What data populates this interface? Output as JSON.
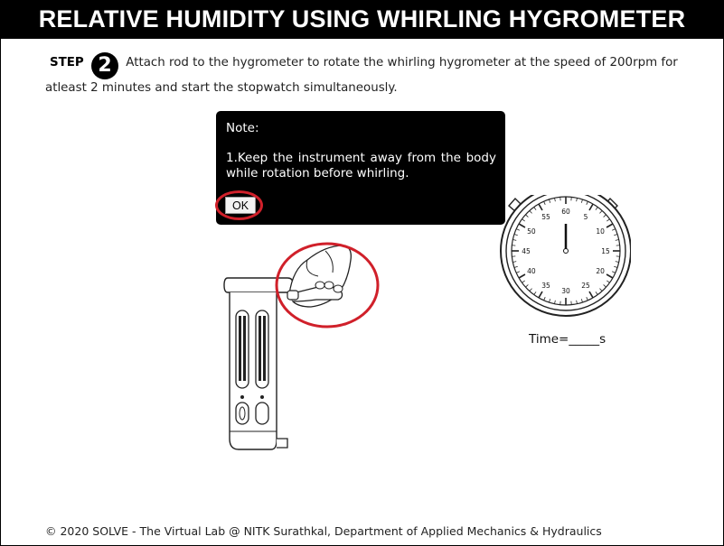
{
  "header": {
    "title": "RELATIVE HUMIDITY USING WHIRLING HYGROMETER"
  },
  "step": {
    "label": "STEP",
    "number": "2",
    "text": "Attach rod to the hygrometer to rotate the whirling hygrometer at the speed of 200rpm for atleast 2 minutes and start the stopwatch simultaneously."
  },
  "note": {
    "title": "Note:",
    "body": "1.Keep the instrument away from the body while rotation before whirling.",
    "ok_label": "OK"
  },
  "stopwatch": {
    "dial_labels": [
      "60",
      "5",
      "10",
      "15",
      "20",
      "25",
      "30",
      "35",
      "40",
      "45",
      "50",
      "55"
    ],
    "time_label": "Time=_____s"
  },
  "footer": {
    "text": "© 2020 SOLVE - The Virtual Lab @ NITK Surathkal, Department of Applied Mechanics & Hydraulics"
  },
  "colors": {
    "highlight_ring": "#d0202a",
    "header_bg": "#000000",
    "note_bg": "#000000"
  }
}
